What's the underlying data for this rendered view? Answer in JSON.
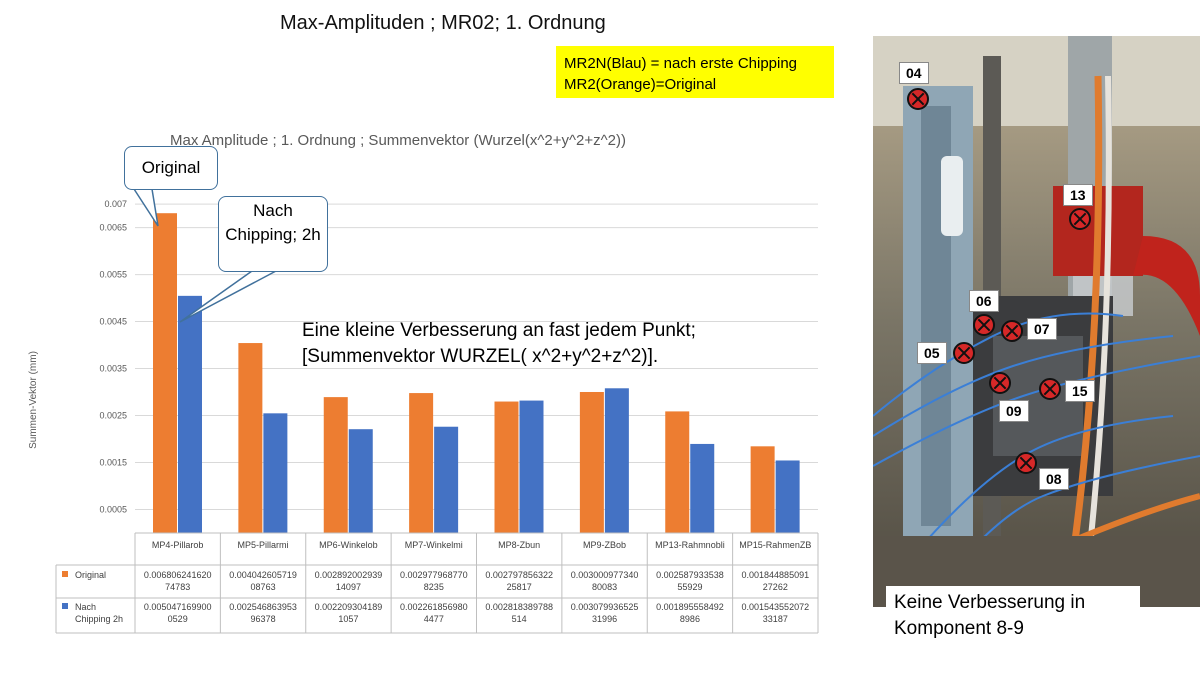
{
  "slide": {
    "title": "Max-Amplituden ; MR02; 1. Ordnung",
    "legend_note_line1": "MR2N(Blau) = nach erste Chipping",
    "legend_note_line2": "MR2(Orange)=Original",
    "callout_original": "Original",
    "callout_nach": "Nach Chipping; 2h",
    "annotation_line1": "Eine kleine Verbesserung an fast jedem Punkt;",
    "annotation_line2": "[Summenvektor WURZEL( x^2+y^2+z^2)].",
    "photo_caption_line1": "Keine Verbesserung in",
    "photo_caption_line2": "Komponent 8-9",
    "photo_labels": [
      "04",
      "13",
      "06",
      "07",
      "05",
      "15",
      "09",
      "08"
    ]
  },
  "colors": {
    "original": "#ed7d31",
    "nach": "#4472c4",
    "highlight": "#ffff00",
    "callout_border": "#41719c"
  },
  "chart_data": {
    "type": "bar",
    "title": "Max Amplitude ; 1. Ordnung ; Summenvektor (Wurzel(x^2+y^2+z^2))",
    "ylabel": "Summen-Vektor (mm)",
    "ylim": [
      0,
      0.0073
    ],
    "yticks": [
      "0.0005",
      "0.0015",
      "0.0025",
      "0.0035",
      "0.0045",
      "0.0055",
      "0.0065",
      "0.007"
    ],
    "categories": [
      "MP4-Pillarob",
      "MP5-Pillarmi",
      "MP6-Winkelob",
      "MP7-Winkelmi",
      "MP8-Zbun",
      "MP9-ZBob",
      "MP13-Rahmnobli",
      "MP15-RahmenZB"
    ],
    "series": [
      {
        "name": "Original",
        "color": "#ed7d31",
        "values": [
          0.006806241620747,
          0.004042605719088,
          0.002892002939141,
          0.002977968770824,
          0.002797856322258,
          0.003000977340801,
          0.002587933538559,
          0.001844885091273
        ],
        "table_lines": [
          [
            "0.006806241620",
            "74783"
          ],
          [
            "0.004042605719",
            "08763"
          ],
          [
            "0.002892002939",
            "14097"
          ],
          [
            "0.002977968770",
            "8235"
          ],
          [
            "0.002797856322",
            "25817"
          ],
          [
            "0.003000977340",
            "80083"
          ],
          [
            "0.002587933538",
            "55929"
          ],
          [
            "0.001844885091",
            "27262"
          ]
        ]
      },
      {
        "name": "Nach Chipping 2h",
        "color": "#4472c4",
        "values": [
          0.005047169900053,
          0.002546863953964,
          0.002209304189106,
          0.002261856980448,
          0.002818389788514,
          0.00307993652532,
          0.001895558492899,
          0.001543552072332
        ],
        "table_lines": [
          [
            "0.005047169900",
            "0529"
          ],
          [
            "0.002546863953",
            "96378"
          ],
          [
            "0.002209304189",
            "1057"
          ],
          [
            "0.002261856980",
            "4477"
          ],
          [
            "0.002818389788",
            "514"
          ],
          [
            "0.003079936525",
            "31996"
          ],
          [
            "0.001895558492",
            "8986"
          ],
          [
            "0.001543552072",
            "33187"
          ]
        ]
      }
    ],
    "legend_lines": [
      [
        "Original"
      ],
      [
        "Nach",
        "Chipping 2h"
      ]
    ],
    "grid": true,
    "legend_position": "data-table"
  }
}
